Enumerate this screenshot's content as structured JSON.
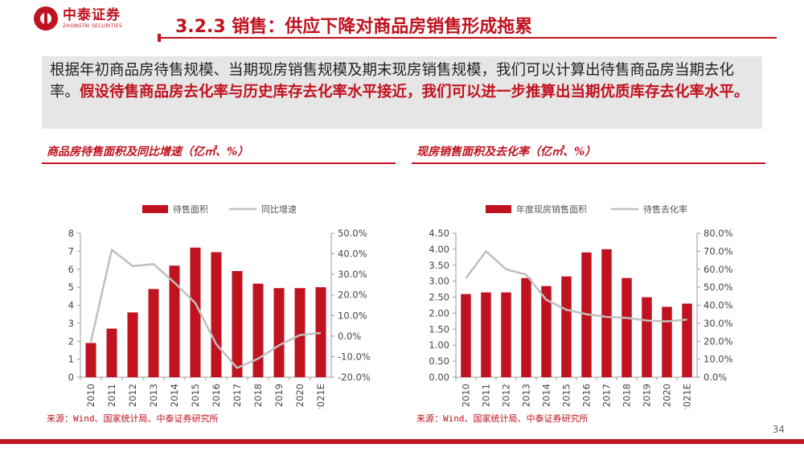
{
  "brand": {
    "name_cn": "中泰证券",
    "name_en": "ZHONGTAI SECURITIES",
    "color": "#c1121f"
  },
  "slide_title": "3.2.3 销售：供应下降对商品房销售形成拖累",
  "summary": {
    "normal": "根据年初商品房待售规模、当期现房销售规模及期末现房销售规模，我们可以计算出待售商品房当期去化率。",
    "highlight": "假设待售商品房去化率与历史库存去化率水平接近，我们可以进一步推算出当期优质库存去化率水平。"
  },
  "page_number": "34",
  "colors": {
    "bar": "#c1121f",
    "line": "#bfbfbf"
  },
  "chart_data": [
    {
      "type": "bar",
      "title": "商品房待售面积及同比增速（亿㎡、%）",
      "source": "来源：Wind、国家统计局、中泰证券研究所",
      "categories": [
        "2010",
        "2011",
        "2012",
        "2013",
        "2014",
        "2015",
        "2016",
        "2017",
        "2018",
        "2019",
        "2020",
        "2021E"
      ],
      "series": [
        {
          "name": "待售面积",
          "type": "bar",
          "axis": "left",
          "values": [
            1.9,
            2.7,
            3.6,
            4.9,
            6.2,
            7.2,
            6.95,
            5.9,
            5.2,
            4.95,
            4.95,
            5.0
          ]
        },
        {
          "name": "同比增速",
          "type": "line",
          "axis": "right",
          "values": [
            -3.0,
            42.0,
            34.0,
            35.0,
            26.0,
            16.0,
            -4.0,
            -15.5,
            -11.0,
            -4.5,
            0.5,
            1.5
          ]
        }
      ],
      "ylim_left": [
        0,
        8
      ],
      "yticks_left": [
        "0",
        "1",
        "2",
        "3",
        "4",
        "5",
        "6",
        "7",
        "8"
      ],
      "ylim_right": [
        -20,
        50
      ],
      "yticks_right": [
        "-20.0%",
        "-10.0%",
        "0.0%",
        "10.0%",
        "20.0%",
        "30.0%",
        "40.0%",
        "50.0%"
      ],
      "legend_position": "top"
    },
    {
      "type": "bar",
      "title": "现房销售面积及去化率（亿㎡、%）",
      "source": "来源：Wind、国家统计局、中泰证券研究所",
      "categories": [
        "2010",
        "2011",
        "2012",
        "2013",
        "2014",
        "2015",
        "2016",
        "2017",
        "2018",
        "2019",
        "2020",
        "2021E"
      ],
      "series": [
        {
          "name": "年度现房销售面积",
          "type": "bar",
          "axis": "left",
          "values": [
            2.6,
            2.65,
            2.65,
            3.1,
            2.85,
            3.15,
            3.9,
            4.0,
            3.1,
            2.5,
            2.2,
            2.3
          ]
        },
        {
          "name": "待售去化率",
          "type": "line",
          "axis": "right",
          "values": [
            55.0,
            70.0,
            60.0,
            57.0,
            43.0,
            37.5,
            35.0,
            33.5,
            33.0,
            31.5,
            31.0,
            32.0
          ]
        }
      ],
      "ylim_left": [
        0,
        4.5
      ],
      "yticks_left": [
        "0.00",
        "0.50",
        "1.00",
        "1.50",
        "2.00",
        "2.50",
        "3.00",
        "3.50",
        "4.00",
        "4.50"
      ],
      "ylim_right": [
        0,
        80
      ],
      "yticks_right": [
        "0.0%",
        "10.0%",
        "20.0%",
        "30.0%",
        "40.0%",
        "50.0%",
        "60.0%",
        "70.0%",
        "80.0%"
      ],
      "legend_position": "top"
    }
  ]
}
